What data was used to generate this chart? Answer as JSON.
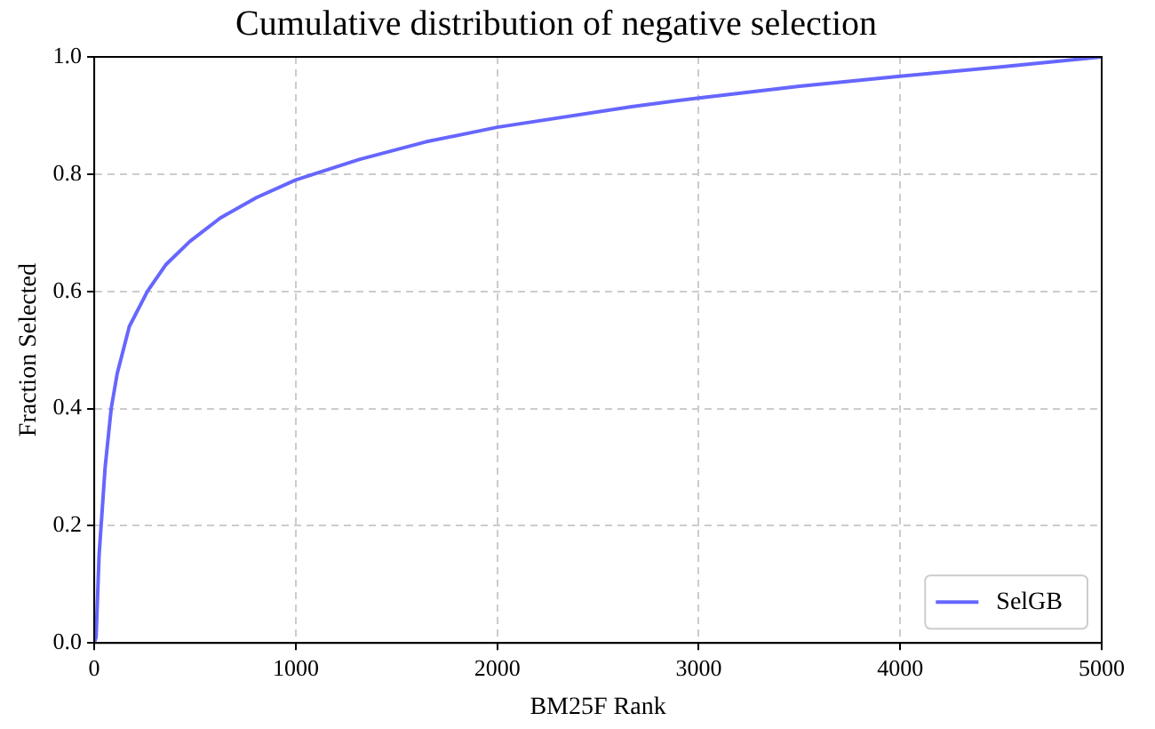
{
  "chart_data": {
    "type": "line",
    "title": "Cumulative distribution of negative selection",
    "xlabel": "BM25F Rank",
    "ylabel": "Fraction Selected",
    "x": [
      0,
      9,
      24,
      54,
      84,
      114,
      174,
      264,
      354,
      474,
      625,
      805,
      1000,
      1315,
      1645,
      2000,
      2667,
      3000,
      3500,
      4000,
      4500,
      5000
    ],
    "series": [
      {
        "name": "SelGB",
        "color": "#6666ff",
        "values": [
          0,
          0.01,
          0.15,
          0.3,
          0.4,
          0.46,
          0.54,
          0.6,
          0.645,
          0.685,
          0.725,
          0.76,
          0.79,
          0.825,
          0.855,
          0.88,
          0.915,
          0.93,
          0.95,
          0.967,
          0.983,
          1.0
        ]
      }
    ],
    "xlim": [
      0,
      5000
    ],
    "xticks": [
      0,
      1000,
      2000,
      3000,
      4000,
      5000
    ],
    "ylim": [
      0,
      1
    ],
    "yticks": [
      {
        "value": 0,
        "label": "0.0"
      },
      {
        "value": 0.2,
        "label": "0.2"
      },
      {
        "value": 0.4,
        "label": "0.4"
      },
      {
        "value": 0.6,
        "label": "0.6"
      },
      {
        "value": 0.8,
        "label": "0.8"
      },
      {
        "value": 1,
        "label": "1.0"
      }
    ],
    "grid": true,
    "legend": "bottom right",
    "marker": "none",
    "line_style": "solid"
  }
}
